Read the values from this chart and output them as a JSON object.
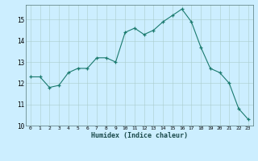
{
  "x": [
    0,
    1,
    2,
    3,
    4,
    5,
    6,
    7,
    8,
    9,
    10,
    11,
    12,
    13,
    14,
    15,
    16,
    17,
    18,
    19,
    20,
    21,
    22,
    23
  ],
  "y": [
    12.3,
    12.3,
    11.8,
    11.9,
    12.5,
    12.7,
    12.7,
    13.2,
    13.2,
    13.0,
    14.4,
    14.6,
    14.3,
    14.5,
    14.9,
    15.2,
    15.5,
    14.9,
    13.7,
    12.7,
    12.5,
    12.0,
    10.8,
    10.3
  ],
  "xlabel": "Humidex (Indice chaleur)",
  "ylim": [
    10,
    15.7
  ],
  "xlim": [
    -0.5,
    23.5
  ],
  "yticks": [
    10,
    11,
    12,
    13,
    14,
    15
  ],
  "xticks": [
    0,
    1,
    2,
    3,
    4,
    5,
    6,
    7,
    8,
    9,
    10,
    11,
    12,
    13,
    14,
    15,
    16,
    17,
    18,
    19,
    20,
    21,
    22,
    23
  ],
  "line_color": "#1a7a6e",
  "marker_color": "#1a7a6e",
  "bg_color": "#cceeff",
  "grid_color": "#aacccc",
  "spine_color": "#557777"
}
